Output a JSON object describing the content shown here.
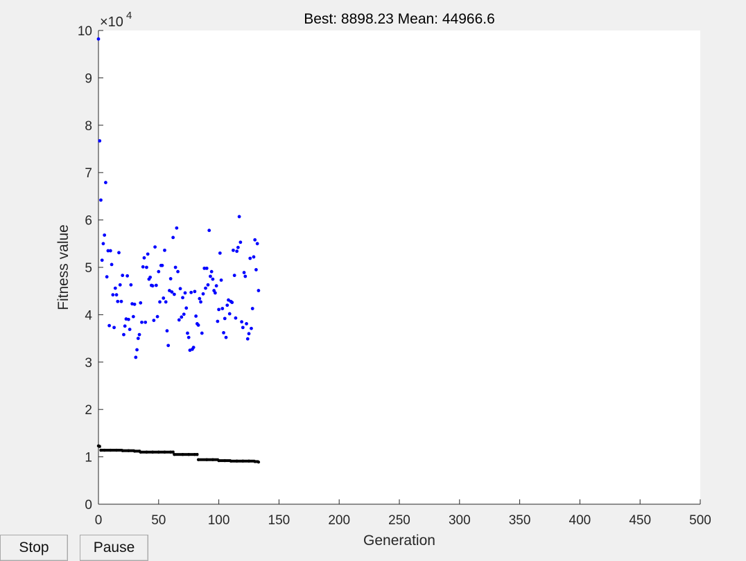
{
  "controls": {
    "stop_label": "Stop",
    "pause_label": "Pause"
  },
  "colors": {
    "figure_background": "#f0f0f0",
    "axes_background": "#ffffff",
    "mean_series": "#0000ff",
    "best_series": "#000000"
  },
  "chart_data": {
    "type": "scatter",
    "title": "Best: 8898.23 Mean: 44966.6",
    "xlabel": "Generation",
    "ylabel": "Fitness value",
    "y_exponent_label": "×10",
    "y_exponent_power": "4",
    "xlim": [
      0,
      500
    ],
    "ylim": [
      0,
      100000
    ],
    "x_ticks": [
      0,
      50,
      100,
      150,
      200,
      250,
      300,
      350,
      400,
      450,
      500
    ],
    "y_ticks": [
      0,
      10000,
      20000,
      30000,
      40000,
      50000,
      60000,
      70000,
      80000,
      90000,
      100000
    ],
    "y_tick_labels": [
      "0",
      "1",
      "2",
      "3",
      "4",
      "5",
      "6",
      "7",
      "8",
      "9",
      "10"
    ],
    "grid": false,
    "series": [
      {
        "name": "Mean",
        "color": "#0000ff",
        "points": [
          [
            0,
            98200
          ],
          [
            1,
            76700
          ],
          [
            2,
            64200
          ],
          [
            3,
            51500
          ],
          [
            4,
            55000
          ],
          [
            5,
            56800
          ],
          [
            6,
            67900
          ],
          [
            7,
            48000
          ],
          [
            8,
            53500
          ],
          [
            9,
            37700
          ],
          [
            10,
            53500
          ],
          [
            11,
            50600
          ],
          [
            12,
            44200
          ],
          [
            13,
            37300
          ],
          [
            14,
            45600
          ],
          [
            15,
            44200
          ],
          [
            16,
            42800
          ],
          [
            17,
            53100
          ],
          [
            18,
            46300
          ],
          [
            19,
            42800
          ],
          [
            20,
            48300
          ],
          [
            21,
            35800
          ],
          [
            22,
            37600
          ],
          [
            23,
            39100
          ],
          [
            24,
            48200
          ],
          [
            25,
            39000
          ],
          [
            26,
            36900
          ],
          [
            27,
            46300
          ],
          [
            28,
            42300
          ],
          [
            29,
            39600
          ],
          [
            30,
            42200
          ],
          [
            31,
            31000
          ],
          [
            32,
            32600
          ],
          [
            33,
            35000
          ],
          [
            34,
            35800
          ],
          [
            35,
            42500
          ],
          [
            36,
            38400
          ],
          [
            37,
            50100
          ],
          [
            38,
            52000
          ],
          [
            39,
            38400
          ],
          [
            40,
            50000
          ],
          [
            41,
            52800
          ],
          [
            42,
            47500
          ],
          [
            43,
            47900
          ],
          [
            44,
            46200
          ],
          [
            45,
            46100
          ],
          [
            46,
            38800
          ],
          [
            47,
            54300
          ],
          [
            48,
            46200
          ],
          [
            49,
            39600
          ],
          [
            50,
            49100
          ],
          [
            51,
            42700
          ],
          [
            52,
            50400
          ],
          [
            53,
            50400
          ],
          [
            54,
            43500
          ],
          [
            55,
            53600
          ],
          [
            56,
            42700
          ],
          [
            57,
            36600
          ],
          [
            58,
            33500
          ],
          [
            59,
            45100
          ],
          [
            60,
            47600
          ],
          [
            61,
            44800
          ],
          [
            62,
            56300
          ],
          [
            63,
            44300
          ],
          [
            64,
            50000
          ],
          [
            65,
            58300
          ],
          [
            66,
            49100
          ],
          [
            67,
            38900
          ],
          [
            68,
            45500
          ],
          [
            69,
            39500
          ],
          [
            70,
            43600
          ],
          [
            71,
            40100
          ],
          [
            72,
            44600
          ],
          [
            73,
            41400
          ],
          [
            74,
            36100
          ],
          [
            75,
            35200
          ],
          [
            76,
            32500
          ],
          [
            77,
            44700
          ],
          [
            78,
            32700
          ],
          [
            79,
            33100
          ],
          [
            80,
            44900
          ],
          [
            81,
            39700
          ],
          [
            82,
            38100
          ],
          [
            83,
            37800
          ],
          [
            84,
            43400
          ],
          [
            85,
            42700
          ],
          [
            86,
            36100
          ],
          [
            87,
            44400
          ],
          [
            88,
            49800
          ],
          [
            89,
            45600
          ],
          [
            90,
            49800
          ],
          [
            91,
            46300
          ],
          [
            92,
            57800
          ],
          [
            93,
            48100
          ],
          [
            94,
            49100
          ],
          [
            95,
            47500
          ],
          [
            96,
            45100
          ],
          [
            97,
            44600
          ],
          [
            98,
            46100
          ],
          [
            99,
            38600
          ],
          [
            100,
            41100
          ],
          [
            101,
            53000
          ],
          [
            102,
            47300
          ],
          [
            103,
            41300
          ],
          [
            104,
            36200
          ],
          [
            105,
            39200
          ],
          [
            106,
            35200
          ],
          [
            107,
            42000
          ],
          [
            108,
            43100
          ],
          [
            109,
            40200
          ],
          [
            110,
            42800
          ],
          [
            111,
            42600
          ],
          [
            112,
            53600
          ],
          [
            113,
            48300
          ],
          [
            114,
            39300
          ],
          [
            115,
            53400
          ],
          [
            116,
            54200
          ],
          [
            117,
            60700
          ],
          [
            118,
            55300
          ],
          [
            119,
            38500
          ],
          [
            120,
            37300
          ],
          [
            121,
            48900
          ],
          [
            122,
            48100
          ],
          [
            123,
            38100
          ],
          [
            124,
            34900
          ],
          [
            125,
            36000
          ],
          [
            126,
            51900
          ],
          [
            127,
            37100
          ],
          [
            128,
            41300
          ],
          [
            129,
            52200
          ],
          [
            130,
            55800
          ],
          [
            131,
            49500
          ],
          [
            132,
            55000
          ],
          [
            133,
            45100
          ]
        ]
      },
      {
        "name": "Best",
        "color": "#000000",
        "points": [
          [
            0,
            12300
          ],
          [
            1,
            12200
          ],
          [
            2,
            11400
          ],
          [
            5,
            11400
          ],
          [
            10,
            11400
          ],
          [
            15,
            11400
          ],
          [
            20,
            11300
          ],
          [
            25,
            11300
          ],
          [
            30,
            11200
          ],
          [
            34,
            11200
          ],
          [
            35,
            11000
          ],
          [
            40,
            11000
          ],
          [
            45,
            11000
          ],
          [
            50,
            11000
          ],
          [
            55,
            11000
          ],
          [
            60,
            11000
          ],
          [
            62,
            11000
          ],
          [
            63,
            10500
          ],
          [
            70,
            10500
          ],
          [
            75,
            10500
          ],
          [
            80,
            10500
          ],
          [
            82,
            10500
          ],
          [
            83,
            9400
          ],
          [
            90,
            9400
          ],
          [
            95,
            9400
          ],
          [
            100,
            9200
          ],
          [
            105,
            9200
          ],
          [
            110,
            9100
          ],
          [
            115,
            9100
          ],
          [
            120,
            9100
          ],
          [
            125,
            9100
          ],
          [
            130,
            9000
          ],
          [
            133,
            8900
          ]
        ]
      }
    ]
  }
}
